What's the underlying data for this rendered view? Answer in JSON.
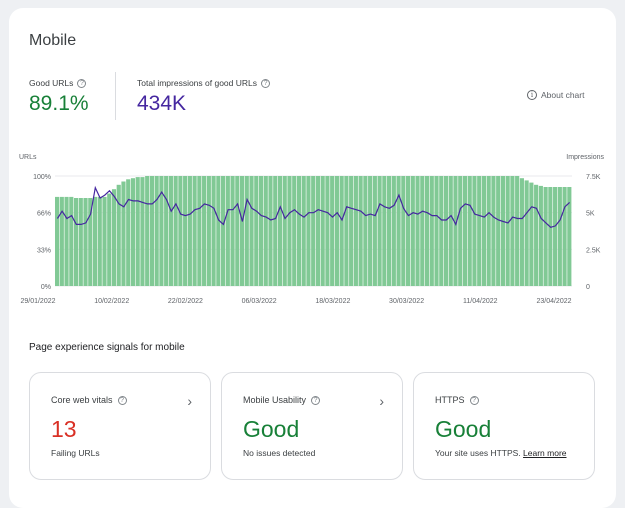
{
  "page": {
    "title": "Mobile"
  },
  "metrics": {
    "good_urls": {
      "label": "Good URLs",
      "value": "89.1%",
      "color": "#188038"
    },
    "impressions": {
      "label": "Total impressions of good URLs",
      "value": "434K",
      "color": "#4527a0"
    }
  },
  "about_chart": {
    "label": "About chart",
    "icon": "info-icon"
  },
  "colors": {
    "bars": "#81c995",
    "line": "#4527a0",
    "good": "#188038",
    "bad": "#d93025"
  },
  "chart_data": {
    "type": "bar",
    "left_axis": {
      "label": "URLs",
      "ticks": [
        "100%",
        "66%",
        "33%",
        "0%"
      ],
      "ylim": [
        0,
        100
      ]
    },
    "right_axis": {
      "label": "Impressions",
      "ticks": [
        "7.5K",
        "5K",
        "2.5K",
        "0"
      ],
      "ylim": [
        0,
        7500
      ]
    },
    "x_ticks": [
      "29/01/2022",
      "10/02/2022",
      "22/02/2022",
      "06/03/2022",
      "18/03/2022",
      "30/03/2022",
      "11/04/2022",
      "23/04/2022"
    ],
    "series": [
      {
        "type": "bar",
        "values": [
          81,
          81,
          81,
          81,
          80,
          80,
          80,
          80,
          81,
          81,
          81,
          84,
          88,
          92,
          95,
          97,
          98,
          99,
          99,
          100,
          100,
          100,
          100,
          100,
          100,
          100,
          100,
          100,
          100,
          100,
          100,
          100,
          100,
          100,
          100,
          100,
          100,
          100,
          100,
          100,
          100,
          100,
          100,
          100,
          100,
          100,
          100,
          100,
          100,
          100,
          100,
          100,
          100,
          100,
          100,
          100,
          100,
          100,
          100,
          100,
          100,
          100,
          100,
          100,
          100,
          100,
          100,
          100,
          100,
          100,
          100,
          100,
          100,
          100,
          100,
          100,
          100,
          100,
          100,
          100,
          100,
          100,
          100,
          100,
          100,
          100,
          100,
          100,
          100,
          100,
          100,
          100,
          100,
          100,
          100,
          100,
          100,
          100,
          98,
          96,
          94,
          92,
          91,
          90,
          90,
          90,
          90,
          90,
          90
        ]
      },
      {
        "type": "line",
        "values": [
          4.6,
          5.1,
          4.6,
          4.8,
          4.2,
          4.2,
          4.3,
          4.9,
          6.7,
          6.0,
          6.2,
          6.5,
          6.1,
          5.6,
          5.4,
          5.9,
          5.8,
          5.8,
          5.7,
          5.6,
          5.6,
          5.9,
          6.4,
          5.9,
          5.1,
          5.6,
          4.9,
          4.8,
          4.9,
          5.2,
          5.3,
          5.6,
          5.5,
          5.3,
          4.5,
          4.2,
          5.2,
          5.2,
          5.6,
          4.4,
          5.9,
          5.3,
          5.1,
          4.8,
          4.7,
          4.5,
          4.6,
          5.4,
          4.6,
          5.0,
          5.2,
          4.9,
          4.7,
          5.0,
          5.0,
          5.2,
          5.1,
          5.0,
          4.7,
          5.0,
          4.5,
          5.4,
          5.3,
          5.2,
          5.1,
          4.8,
          4.9,
          4.8,
          5.6,
          5.4,
          5.3,
          5.5,
          6.2,
          5.3,
          4.8,
          5.0,
          4.9,
          5.1,
          5.0,
          4.8,
          4.8,
          4.5,
          4.5,
          4.8,
          4.2,
          5.3,
          5.6,
          5.5,
          4.9,
          4.8,
          4.7,
          5.0,
          4.7,
          4.5,
          4.4,
          4.3,
          4.7,
          4.6,
          4.6,
          5.0,
          5.4,
          5.3,
          4.6,
          4.3,
          4.0,
          4.1,
          4.5,
          5.4,
          5.7
        ]
      }
    ]
  },
  "section_title": "Page experience signals for mobile",
  "signals": [
    {
      "label": "Core web vitals",
      "value": "13",
      "sub": "Failing URLs",
      "value_color": "#d93025",
      "has_chevron": true
    },
    {
      "label": "Mobile Usability",
      "value": "Good",
      "sub": "No issues detected",
      "value_color": "#188038",
      "has_chevron": true
    },
    {
      "label": "HTTPS",
      "value": "Good",
      "sub": "Your site uses HTTPS.",
      "link": "Learn more",
      "value_color": "#188038",
      "has_chevron": false
    }
  ]
}
